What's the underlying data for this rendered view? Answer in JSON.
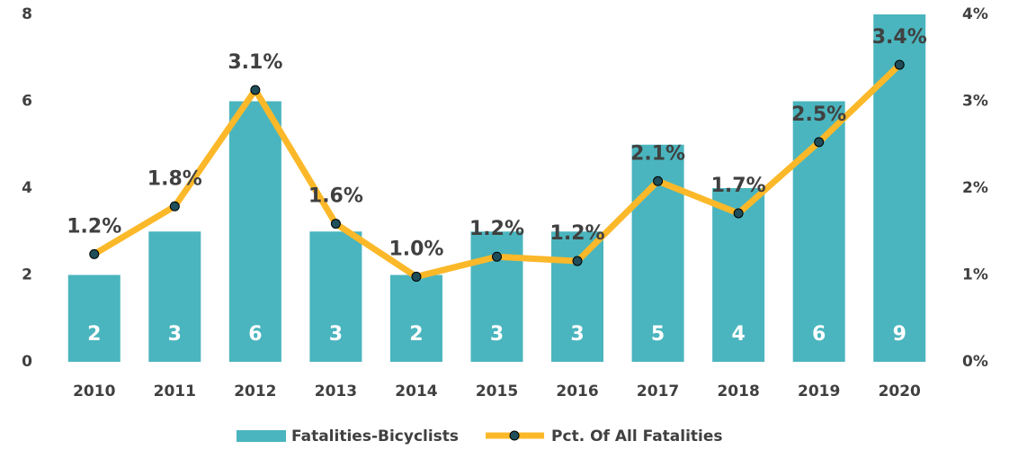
{
  "chart_data": {
    "type": "combo",
    "categories": [
      "2010",
      "2011",
      "2012",
      "2013",
      "2014",
      "2015",
      "2016",
      "2017",
      "2018",
      "2019",
      "2020"
    ],
    "series": [
      {
        "name": "Fatalities-Bicyclists",
        "type": "bar",
        "color": "#4ab5be",
        "values": [
          2,
          3,
          6,
          3,
          2,
          3,
          3,
          5,
          4,
          6,
          9
        ]
      },
      {
        "name": "Pct. Of All Fatalities",
        "type": "line",
        "axis": "y2",
        "color": "#fbb829",
        "marker_color": "#1f4e5a",
        "values": [
          1.24,
          1.79,
          3.13,
          1.59,
          0.98,
          1.21,
          1.16,
          2.08,
          1.71,
          2.53,
          3.42
        ],
        "value_labels": [
          "1.2%",
          "1.8%",
          "3.1%",
          "1.6%",
          "1.0%",
          "1.2%",
          "1.2%",
          "2.1%",
          "1.7%",
          "2.5%",
          "3.4%"
        ]
      }
    ],
    "ylim": [
      0,
      8
    ],
    "yticks": [
      0,
      2,
      4,
      6,
      8
    ],
    "y2lim": [
      0,
      4
    ],
    "y2ticks": [
      {
        "value": 0,
        "label": "0%"
      },
      {
        "value": 1,
        "label": "1%"
      },
      {
        "value": 2,
        "label": "2%"
      },
      {
        "value": 3,
        "label": "3%"
      },
      {
        "value": 4,
        "label": "4%"
      }
    ],
    "grid": false,
    "legend": "bottom"
  }
}
